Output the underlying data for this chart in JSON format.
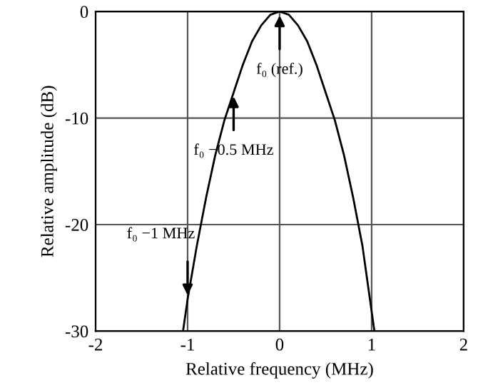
{
  "chart_data": {
    "type": "line",
    "xlabel": "Relative frequency (MHz)",
    "ylabel": "Relative amplitude (dB)",
    "x": [
      -1.05,
      -1,
      -0.9,
      -0.8,
      -0.7,
      -0.6,
      -0.5,
      -0.4,
      -0.3,
      -0.2,
      -0.1,
      0,
      0.1,
      0.2,
      0.3,
      0.4,
      0.5,
      0.6,
      0.7,
      0.8,
      0.9,
      1.03
    ],
    "values": [
      -30,
      -27,
      -22,
      -17.5,
      -13.5,
      -10.2,
      -7.6,
      -5,
      -2.8,
      -1.3,
      -0.3,
      0,
      -0.3,
      -1.3,
      -2.8,
      -5,
      -7.6,
      -10.2,
      -13.5,
      -17.5,
      -22,
      -30
    ],
    "color": "#000000",
    "xlim": [
      -2,
      2
    ],
    "xticks": [
      -2,
      -1,
      0,
      1,
      2
    ],
    "ylim": [
      -30,
      0
    ],
    "yticks": [
      -30,
      -20,
      -10,
      0
    ],
    "grid": true,
    "annotations": [
      {
        "text": "f₀ (ref.)",
        "x": 0,
        "y": 0
      },
      {
        "text": "f₀ −0.5 MHz",
        "x": -0.5,
        "y": -7.6
      },
      {
        "text": "f₀ −1 MHz",
        "x": -1,
        "y": -27
      }
    ]
  }
}
